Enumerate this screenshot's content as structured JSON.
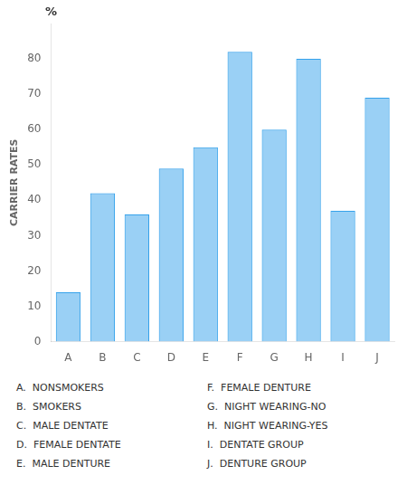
{
  "chart_data": {
    "type": "bar",
    "categories": [
      "A",
      "B",
      "C",
      "D",
      "E",
      "F",
      "G",
      "H",
      "I",
      "J"
    ],
    "values": [
      14,
      42,
      36,
      49,
      55,
      82,
      60,
      80,
      37,
      69
    ],
    "ylabel": "CARRIER RATES",
    "ylim": [
      0,
      90
    ],
    "yticks": [
      0,
      10,
      20,
      30,
      40,
      50,
      60,
      70,
      80
    ],
    "grid": false,
    "annotations": [
      "%",
      "A.  NONSMOKERS",
      "B.  SMOKERS",
      "C.  MALE DENTATE",
      "D.  FEMALE DENTATE",
      "E.  MALE DENTURE",
      "F.  FEMALE DENTURE",
      "G.  NIGHT WEARING-NO",
      "H.  NIGHT WEARING-YES",
      "I.  DENTATE GROUP",
      "J.  DENTURE GROUP"
    ]
  }
}
